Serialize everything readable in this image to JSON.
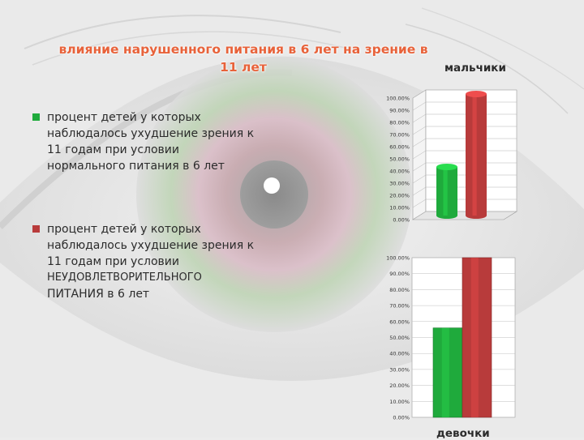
{
  "slide": {
    "title_line1": "влияние нарушенного питания  в 6 лет на зрение в",
    "title_line2": "11 лет",
    "legend": [
      {
        "text_lines": [
          "процент детей у которых",
          "наблюдалось ухудшение зрения к",
          "11 годам при условии",
          "нормального питания в 6 лет"
        ],
        "color": "#1faa3c"
      },
      {
        "text_lines": [
          "процент детей у которых",
          "наблюдалось ухудшение зрения к",
          "11 годам при условии",
          "НЕУДОВЛЕТВОРИТЕЛЬНОГО",
          "ПИТАНИЯ в 6 лет"
        ],
        "color": "#b83b3b"
      }
    ],
    "colors": {
      "title": "#e8623a",
      "green": "#1faa3c",
      "red": "#b83b3b"
    }
  },
  "chart_data": [
    {
      "type": "bar",
      "title": "мальчики",
      "style": "3d",
      "categories": [
        ""
      ],
      "series": [
        {
          "values": [
            40
          ]
        },
        {
          "values": [
            100
          ]
        }
      ],
      "ylim": [
        0,
        100
      ],
      "yticks": [
        "0.00%",
        "10.00%",
        "20.00%",
        "30.00%",
        "40.00%",
        "50.00%",
        "60.00%",
        "70.00%",
        "80.00%",
        "90.00%",
        "100.00%"
      ],
      "grid": true
    },
    {
      "type": "bar",
      "title": "девочки",
      "style": "2d",
      "categories": [
        ""
      ],
      "series": [
        {
          "values": [
            56
          ]
        },
        {
          "values": [
            100
          ]
        }
      ],
      "ylim": [
        0,
        100
      ],
      "yticks": [
        "0.00%",
        "10.00%",
        "20.00%",
        "30.00%",
        "40.00%",
        "50.00%",
        "60.00%",
        "70.00%",
        "80.00%",
        "90.00%",
        "100.00%"
      ],
      "grid": true
    }
  ]
}
